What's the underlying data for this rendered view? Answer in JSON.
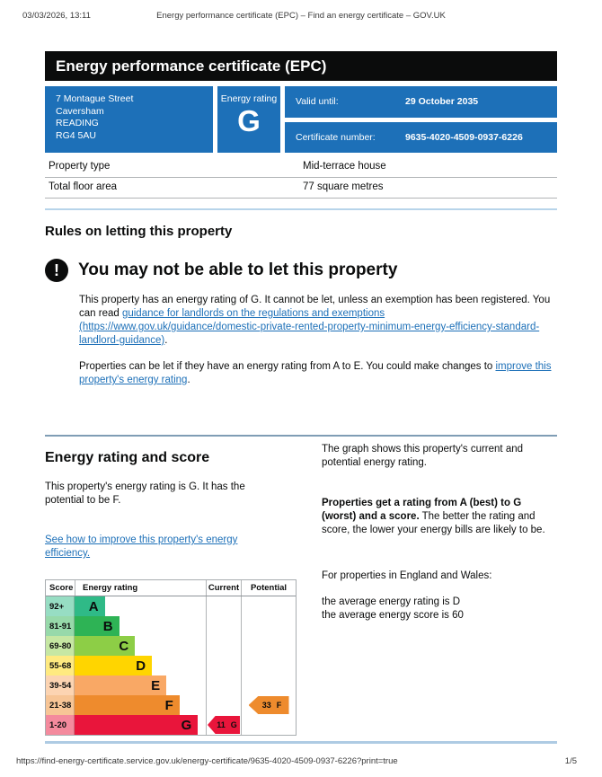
{
  "page": {
    "print_date": "03/03/2026, 13:11",
    "print_title": "Energy performance certificate (EPC) – Find an energy certificate – GOV.UK",
    "footer_url": "https://find-energy-certificate.service.gov.uk/energy-certificate/9635-4020-4509-0937-6226?print=true",
    "page_number": "1/5"
  },
  "banner": {
    "title": "Energy performance certificate (EPC)"
  },
  "summary": {
    "address_lines": [
      "7 Montague Street",
      "Caversham",
      "READING",
      "RG4 5AU"
    ],
    "energy_rating_label": "Energy rating",
    "energy_rating": "G",
    "valid_until_label": "Valid until:",
    "valid_until": "29 October 2035",
    "certificate_number_label": "Certificate number:",
    "certificate_number": "9635-4020-4509-0937-6226"
  },
  "property_facts": [
    {
      "label": "Property type",
      "value": "Mid-terrace house"
    },
    {
      "label": "Total floor area",
      "value": "77 square metres"
    }
  ],
  "rules_section": {
    "heading": "Rules on letting this property",
    "warning_icon": "!",
    "warning_heading": "You may not be able to let this property",
    "para1_before": "This property has an energy rating of G. It cannot be let, unless an exemption has been registered. You can read ",
    "para1_link": "guidance for landlords on the regulations and exemptions (https://www.gov.uk/guidance/domestic-private-rented-property-minimum-energy-efficiency-standard-landlord-guidance)",
    "para1_after": ".",
    "para2_before": "Properties can be let if they have an energy rating from A to E. You could make changes to ",
    "para2_link": "improve this property's energy rating",
    "para2_after": "."
  },
  "rating_section": {
    "heading": "Energy rating and score",
    "body": "This property's energy rating is G. It has the potential to be F.",
    "link": "See how to improve this property's energy efficiency.",
    "right_para1": "The graph shows this property's current and potential energy rating.",
    "right_para2_bold": "Properties get a rating from A (best) to G (worst) and a score.",
    "right_para2_rest": " The better the rating and score, the lower your energy bills are likely to be.",
    "right_para3": "For properties in England and Wales:",
    "right_para4_line1": "the average energy rating is D",
    "right_para4_line2": "the average energy score is 60"
  },
  "chart_data": {
    "type": "bar",
    "title": "EPC energy rating and score graph",
    "columns": [
      "Score",
      "Energy rating",
      "Current",
      "Potential"
    ],
    "bands": [
      {
        "score": "92+",
        "letter": "A",
        "color": "#2fba87",
        "width_pct": 23
      },
      {
        "score": "81-91",
        "letter": "B",
        "color": "#2eb355",
        "width_pct": 34
      },
      {
        "score": "69-80",
        "letter": "C",
        "color": "#8dce46",
        "width_pct": 46
      },
      {
        "score": "55-68",
        "letter": "D",
        "color": "#ffd500",
        "width_pct": 59
      },
      {
        "score": "39-54",
        "letter": "E",
        "color": "#f9a865",
        "width_pct": 70
      },
      {
        "score": "21-38",
        "letter": "F",
        "color": "#ee8b2d",
        "width_pct": 80
      },
      {
        "score": "1-20",
        "letter": "G",
        "color": "#e9153b",
        "width_pct": 94
      }
    ],
    "current": {
      "score": 11,
      "letter": "G",
      "band_index": 6,
      "color": "#e9153b"
    },
    "potential": {
      "score": 33,
      "letter": "F",
      "band_index": 5,
      "color": "#ee8b2d"
    }
  },
  "colors": {
    "brand_blue": "#1d70b8",
    "link_blue": "#1d70b8",
    "banner_black": "#0b0c0c",
    "border_gray": "#b1b4b6"
  }
}
